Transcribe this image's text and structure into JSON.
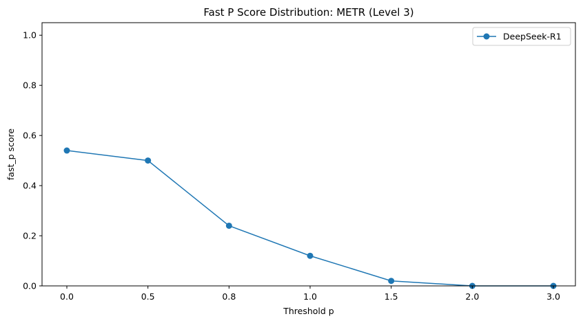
{
  "chart_data": {
    "type": "line",
    "title": "Fast P Score Distribution: METR (Level 3)",
    "xlabel": "Threshold p",
    "ylabel": "fast_p score",
    "categories": [
      "0.0",
      "0.5",
      "0.8",
      "1.0",
      "1.5",
      "2.0",
      "3.0"
    ],
    "ylim": [
      0,
      1.05
    ],
    "yticks": [
      0.0,
      0.2,
      0.4,
      0.6,
      0.8,
      1.0
    ],
    "ytick_labels": [
      "0.0",
      "0.2",
      "0.4",
      "0.6",
      "0.8",
      "1.0"
    ],
    "grid": false,
    "legend_position": "top-right",
    "series": [
      {
        "name": "DeepSeek-R1",
        "color": "#1f77b4",
        "marker": "circle",
        "values": [
          0.54,
          0.5,
          0.24,
          0.12,
          0.02,
          0.0,
          0.0
        ]
      }
    ]
  }
}
